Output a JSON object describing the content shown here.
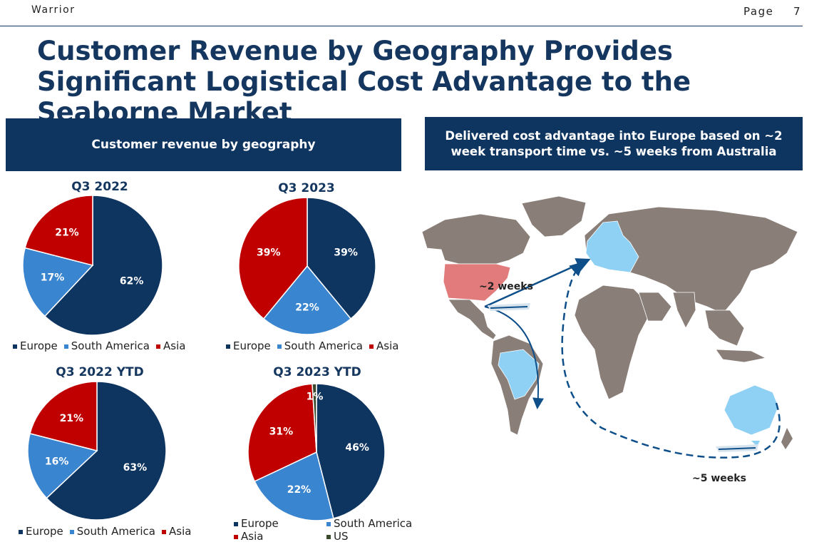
{
  "header": {
    "company": "Warrior",
    "page_label": "Page",
    "page_number": "7"
  },
  "title": "Customer Revenue by Geography Provides Significant Logistical Cost Advantage to the Seaborne Market",
  "left_panel": {
    "heading": "Customer revenue by geography"
  },
  "right_panel": {
    "heading": "Delivered cost advantage into Europe based on ~2 week transport time vs. ~5 weeks from Australia",
    "short_route_label": "~2 weeks",
    "long_route_label": "~5 weeks"
  },
  "colors": {
    "europe": "#0e3460",
    "south_america": "#3a85d0",
    "asia": "#c00000",
    "us": "#3b4a2e",
    "land": "#8a7e78",
    "highlight_us": "#e27c7c",
    "highlight_eu": "#8fd0f5",
    "route": "#0e4f8a"
  },
  "chart_data": [
    {
      "type": "pie",
      "title": "Q3 2022",
      "categories": [
        "Europe",
        "South America",
        "Asia"
      ],
      "values": [
        62,
        17,
        21
      ],
      "labels": [
        "62%",
        "17%",
        "21%"
      ],
      "legend": [
        "Europe",
        "South America",
        "Asia"
      ]
    },
    {
      "type": "pie",
      "title": "Q3 2023",
      "categories": [
        "Europe",
        "South America",
        "Asia"
      ],
      "values": [
        39,
        22,
        39
      ],
      "labels": [
        "39%",
        "22%",
        "39%"
      ],
      "legend": [
        "Europe",
        "South America",
        "Asia"
      ]
    },
    {
      "type": "pie",
      "title": "Q3 2022 YTD",
      "categories": [
        "Europe",
        "South America",
        "Asia"
      ],
      "values": [
        63,
        16,
        21
      ],
      "labels": [
        "63%",
        "16%",
        "21%"
      ],
      "legend": [
        "Europe",
        "South America",
        "Asia"
      ]
    },
    {
      "type": "pie",
      "title": "Q3 2023 YTD",
      "categories": [
        "Europe",
        "South America",
        "Asia",
        "US"
      ],
      "values": [
        46,
        22,
        31,
        1
      ],
      "labels": [
        "46%",
        "22%",
        "31%",
        "1%"
      ],
      "legend": [
        "Europe",
        "South America",
        "Asia",
        "US"
      ]
    }
  ]
}
